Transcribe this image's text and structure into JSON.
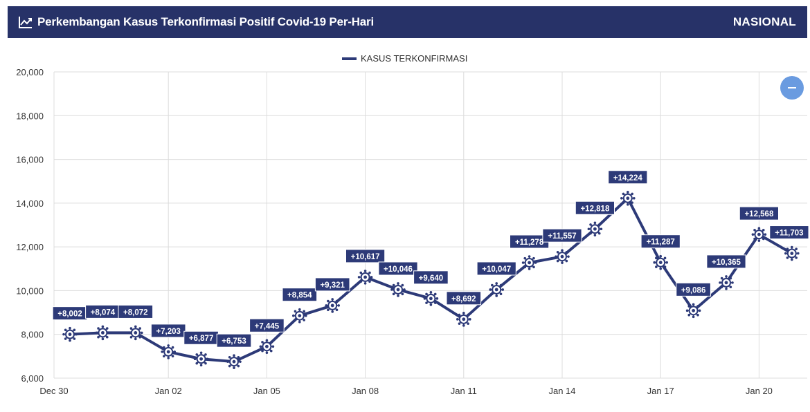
{
  "header": {
    "title": "Perkembangan Kasus Terkonfirmasi Positif Covid-19 Per-Hari",
    "region": "NASIONAL",
    "icon": "line-chart-icon"
  },
  "colors": {
    "header_bg": "#273268",
    "series": "#2d3a78",
    "zoom_button": "#6a9be0"
  },
  "zoom_button": {
    "icon": "minus-icon"
  },
  "chart_data": {
    "type": "line",
    "title": "",
    "xlabel": "",
    "ylabel": "",
    "legend_position": "top-center",
    "grid": true,
    "ylim": [
      6000,
      20000
    ],
    "y_ticks": [
      "6,000",
      "8,000",
      "10,000",
      "12,000",
      "14,000",
      "16,000",
      "18,000",
      "20,000"
    ],
    "x_ticks": [
      "Dec 30",
      "Jan 02",
      "Jan 05",
      "Jan 08",
      "Jan 11",
      "Jan 14",
      "Jan 17",
      "Jan 20"
    ],
    "x": [
      "Dec 30",
      "Dec 31",
      "Jan 01",
      "Jan 02",
      "Jan 03",
      "Jan 04",
      "Jan 05",
      "Jan 06",
      "Jan 07",
      "Jan 08",
      "Jan 09",
      "Jan 10",
      "Jan 11",
      "Jan 12",
      "Jan 13",
      "Jan 14",
      "Jan 15",
      "Jan 16",
      "Jan 17",
      "Jan 18",
      "Jan 19",
      "Jan 20",
      "Jan 21"
    ],
    "series": [
      {
        "name": "KASUS TERKONFIRMASI",
        "values": [
          8002,
          8074,
          8072,
          7203,
          6877,
          6753,
          7445,
          8854,
          9321,
          10617,
          10046,
          9640,
          8692,
          10047,
          11278,
          11557,
          12818,
          14224,
          11287,
          9086,
          10365,
          12568,
          11703
        ],
        "labels": [
          "+8,002",
          "+8,074",
          "+8,072",
          "+7,203",
          "+6,877",
          "+6,753",
          "+7,445",
          "+8,854",
          "+9,321",
          "+10,617",
          "+10,046",
          "+9,640",
          "+8,692",
          "+10,047",
          "+11,278",
          "+11,557",
          "+12,818",
          "+14,224",
          "+11,287",
          "+9,086",
          "+10,365",
          "+12,568",
          "+11,703"
        ],
        "marker": "virus-icon"
      }
    ]
  }
}
